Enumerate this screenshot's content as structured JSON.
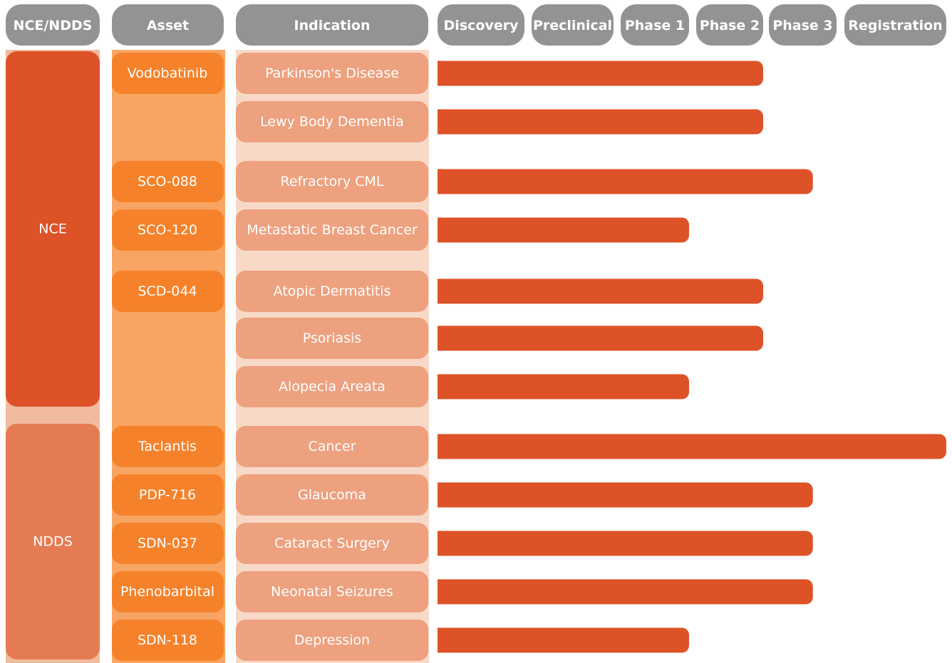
{
  "chart_data": {
    "type": "pipeline",
    "headers": [
      "NCE/NDDS",
      "Asset",
      "Indication"
    ],
    "stages": [
      "Discovery",
      "Preclinical",
      "Phase 1",
      "Phase 2",
      "Phase 3",
      "Registration"
    ],
    "groups": [
      {
        "label": "NCE",
        "rows": [
          {
            "asset": "Vodobatinib",
            "indication": "Parkinson's Disease",
            "progress": 4
          },
          {
            "indication": "Lewy Body Dementia",
            "progress": 4
          },
          {
            "asset": "SCO-088",
            "indication": "Refractory CML",
            "progress": 4.65
          },
          {
            "asset": "SCO-120",
            "indication": "Metastatic Breast Cancer",
            "progress": 3
          },
          {
            "asset": "SCD-044",
            "indication": "Atopic Dermatitis",
            "progress": 4
          },
          {
            "indication": "Psoriasis",
            "progress": 4
          },
          {
            "indication": "Alopecia Areata",
            "progress": 3
          }
        ]
      },
      {
        "label": "NDDS",
        "rows": [
          {
            "asset": "Taclantis",
            "indication": "Cancer",
            "progress": 6
          },
          {
            "asset": "PDP-716",
            "indication": "Glaucoma",
            "progress": 4.65
          },
          {
            "asset": "SDN-037",
            "indication": "Cataract Surgery",
            "progress": 4.65
          },
          {
            "asset": "Phenobarbital",
            "indication": "Neonatal Seizures",
            "progress": 4.65
          },
          {
            "asset": "SDN-118",
            "indication": "Depression",
            "progress": 3
          }
        ]
      }
    ]
  }
}
